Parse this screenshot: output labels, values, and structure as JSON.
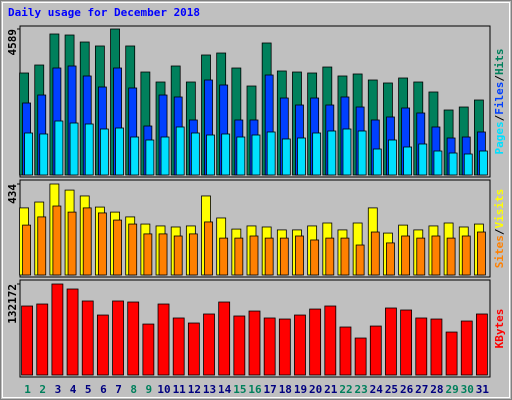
{
  "chart_data": [
    {
      "type": "bar",
      "title": "Daily usage for December 2018",
      "categories": [
        "1",
        "2",
        "3",
        "4",
        "5",
        "6",
        "7",
        "8",
        "9",
        "10",
        "11",
        "12",
        "13",
        "14",
        "15",
        "16",
        "17",
        "18",
        "19",
        "20",
        "21",
        "22",
        "23",
        "24",
        "25",
        "26",
        "27",
        "28",
        "29",
        "30",
        "31"
      ],
      "category_colors": [
        "#00805c",
        "#00805c",
        "#000080",
        "#000080",
        "#000080",
        "#000080",
        "#000080",
        "#00805c",
        "#00805c",
        "#000080",
        "#000080",
        "#000080",
        "#000080",
        "#000080",
        "#00805c",
        "#00805c",
        "#000080",
        "#000080",
        "#000080",
        "#000080",
        "#000080",
        "#00805c",
        "#00805c",
        "#000080",
        "#000080",
        "#000080",
        "#000080",
        "#000080",
        "#00805c",
        "#00805c",
        "#000080"
      ],
      "legend_separator": "/",
      "ylim": [
        0,
        4589
      ],
      "yticks": [
        4589
      ],
      "series": [
        {
          "name": "Hits",
          "color": "#00805c",
          "values": [
            3206,
            3457,
            4432,
            4400,
            4180,
            4055,
            4589,
            4055,
            3237,
            2923,
            3426,
            2923,
            3772,
            3834,
            3363,
            2797,
            4149,
            3269,
            3237,
            3206,
            3394,
            3112,
            3175,
            2986,
            2892,
            3049,
            2923,
            2609,
            2043,
            2137,
            2357
          ]
        },
        {
          "name": "Files",
          "color": "#0040ff",
          "values": [
            2263,
            2514,
            3363,
            3426,
            3112,
            2766,
            3363,
            2735,
            1540,
            2514,
            2452,
            1729,
            2986,
            2829,
            1729,
            1729,
            3143,
            2420,
            2200,
            2420,
            2200,
            2452,
            2137,
            1729,
            1823,
            2106,
            1949,
            1509,
            1163,
            1194,
            1352
          ]
        },
        {
          "name": "Pages",
          "color": "#00e0ff",
          "values": [
            1320,
            1289,
            1697,
            1634,
            1603,
            1446,
            1477,
            1194,
            1100,
            1194,
            1509,
            1320,
            1257,
            1289,
            1194,
            1257,
            1352,
            1132,
            1163,
            1320,
            1383,
            1446,
            1383,
            817,
            1100,
            880,
            974,
            754,
            691,
            660,
            754
          ]
        }
      ]
    },
    {
      "type": "bar",
      "legend_separator": "/",
      "ylim": [
        0,
        434
      ],
      "yticks": [
        434
      ],
      "series": [
        {
          "name": "Visits",
          "color": "#ffff00",
          "values": [
            320,
            348,
            434,
            405,
            377,
            324,
            300,
            277,
            243,
            234,
            229,
            234,
            377,
            272,
            219,
            234,
            229,
            215,
            215,
            234,
            248,
            215,
            248,
            320,
            200,
            238,
            215,
            234,
            248,
            229,
            243
          ]
        },
        {
          "name": "Sites",
          "color": "#ff8000",
          "values": [
            238,
            277,
            329,
            300,
            320,
            296,
            262,
            243,
            196,
            196,
            186,
            196,
            253,
            176,
            176,
            186,
            176,
            176,
            186,
            167,
            176,
            176,
            143,
            205,
            153,
            186,
            176,
            186,
            176,
            186,
            205
          ]
        }
      ]
    },
    {
      "type": "bar",
      "ylim": [
        0,
        132172
      ],
      "yticks": [
        132172
      ],
      "series": [
        {
          "name": "KBytes",
          "color": "#ff0000",
          "values": [
            100200,
            103100,
            132172,
            124900,
            107500,
            87100,
            107500,
            106000,
            74000,
            103100,
            82800,
            75500,
            88600,
            106000,
            85700,
            92900,
            82800,
            81300,
            87100,
            95800,
            100200,
            69700,
            53700,
            71100,
            97300,
            94400,
            82800,
            81300,
            62400,
            78400,
            88600
          ]
        }
      ]
    }
  ]
}
